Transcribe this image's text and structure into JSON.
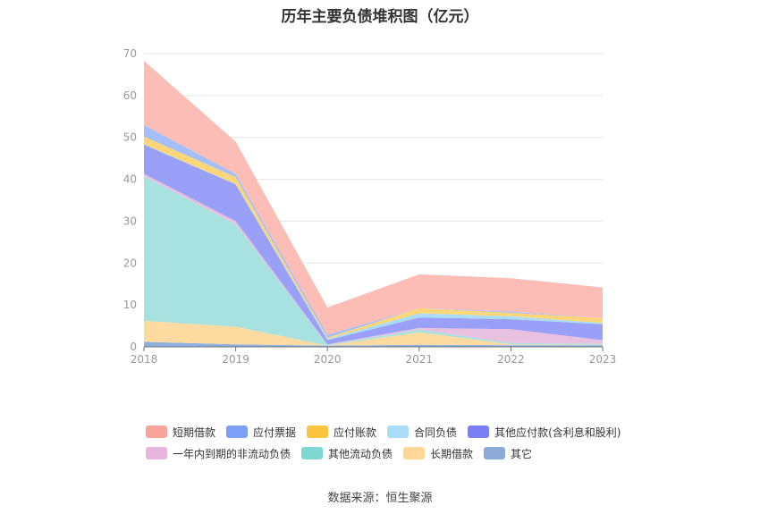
{
  "title": "历年主要负债堆积图（亿元）",
  "source": "数据来源：恒生聚源",
  "chart_data": {
    "type": "area",
    "stacked": true,
    "x": [
      "2018",
      "2019",
      "2020",
      "2021",
      "2022",
      "2023"
    ],
    "ylim": [
      0,
      70
    ],
    "yticks": [
      0,
      10,
      20,
      30,
      40,
      50,
      60,
      70
    ],
    "grid": true,
    "legend_position": "bottom",
    "series": [
      {
        "name": "其它",
        "color": "#8fb0dd",
        "values": [
          1.2,
          0.6,
          0.3,
          0.5,
          0.4,
          0.4
        ]
      },
      {
        "name": "长期借款",
        "color": "#fddba0",
        "values": [
          5.0,
          4.2,
          0.0,
          3.0,
          0.2,
          0.1
        ]
      },
      {
        "name": "其他流动负债",
        "color": "#a8e2e0",
        "values": [
          34.5,
          24.5,
          0.2,
          0.6,
          0.3,
          0.2
        ]
      },
      {
        "name": "一年内到期的非流动负债",
        "color": "#e8c0e0",
        "values": [
          0.6,
          0.7,
          0.1,
          0.4,
          3.3,
          0.9
        ]
      },
      {
        "name": "其他应付款(含利息和股利)",
        "color": "#9a9ff8",
        "values": [
          7.0,
          8.8,
          1.0,
          2.5,
          2.4,
          3.8
        ]
      },
      {
        "name": "合同负债",
        "color": "#aadcf5",
        "values": [
          0.1,
          0.1,
          0.3,
          1.0,
          0.7,
          0.3
        ]
      },
      {
        "name": "应付账款",
        "color": "#fcd677",
        "values": [
          1.8,
          1.6,
          0.3,
          1.2,
          0.8,
          1.2
        ]
      },
      {
        "name": "应付票据",
        "color": "#a7bff8",
        "values": [
          2.8,
          0.8,
          0.7,
          0.0,
          0.3,
          0.0
        ]
      },
      {
        "name": "短期借款",
        "color": "#fbbdb6",
        "values": [
          15.3,
          7.7,
          6.5,
          8.1,
          8.0,
          7.3
        ]
      }
    ],
    "legend_rows": [
      [
        {
          "name": "短期借款",
          "color": "#f7a49a"
        },
        {
          "name": "应付票据",
          "color": "#7ea0f6"
        },
        {
          "name": "应付账款",
          "color": "#fbc53f"
        },
        {
          "name": "合同负债",
          "color": "#a9dcf6"
        },
        {
          "name": "其他应付款(含利息和股利)",
          "color": "#7b7ff4"
        }
      ],
      [
        {
          "name": "一年内到期的非流动负债",
          "color": "#e7b6dd"
        },
        {
          "name": "其他流动负债",
          "color": "#7fd7d4"
        },
        {
          "name": "长期借款",
          "color": "#fcd795"
        },
        {
          "name": "其它",
          "color": "#8cabd9"
        }
      ]
    ]
  }
}
